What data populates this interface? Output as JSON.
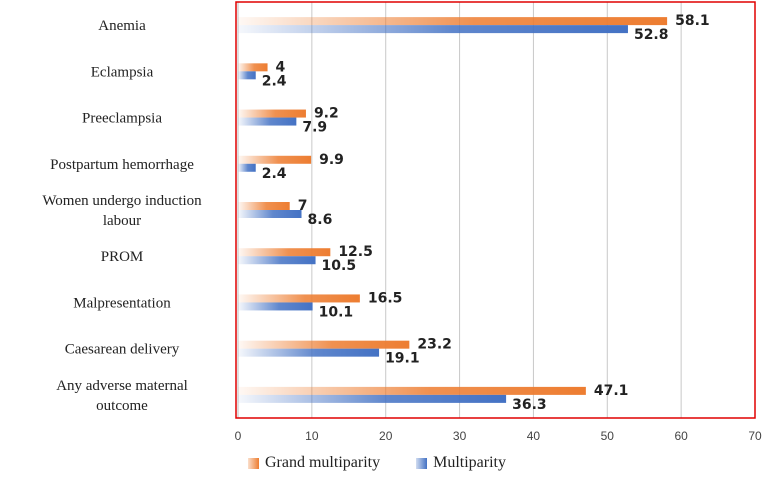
{
  "chart_data": {
    "type": "bar",
    "orientation": "horizontal",
    "categories": [
      "Anemia",
      "Eclampsia",
      "Preeclampsia",
      "Postpartum hemorrhage",
      "Women undergo induction labour",
      "PROM",
      "Malpresentation",
      "Caesarean delivery",
      "Any adverse maternal outcome"
    ],
    "series": [
      {
        "name": "Grand multiparity",
        "values": [
          58.1,
          4,
          9.2,
          9.9,
          7,
          12.5,
          16.5,
          23.2,
          47.1
        ],
        "labels": [
          "58.1",
          "4",
          "9.2",
          "9.9",
          "7",
          "12.5",
          "16.5",
          "23.2",
          "47.1"
        ],
        "color": "#ED7D31"
      },
      {
        "name": "Multiparity",
        "values": [
          52.8,
          2.4,
          7.9,
          2.4,
          8.6,
          10.5,
          10.1,
          19.1,
          36.3
        ],
        "labels": [
          "52.8",
          "2.4",
          "7.9",
          "2.4",
          "8.6",
          "10.5",
          "10.1",
          "19.1",
          "36.3"
        ],
        "color": "#4472C4"
      }
    ],
    "xlim": [
      0,
      70
    ],
    "xticks": [
      0,
      10,
      20,
      30,
      40,
      50,
      60,
      70
    ],
    "xtick_labels": [
      "0",
      "10",
      "20",
      "30",
      "40",
      "50",
      "60",
      "70"
    ],
    "grid": true,
    "legend_position": "bottom",
    "title": "",
    "xlabel": "",
    "ylabel": ""
  }
}
